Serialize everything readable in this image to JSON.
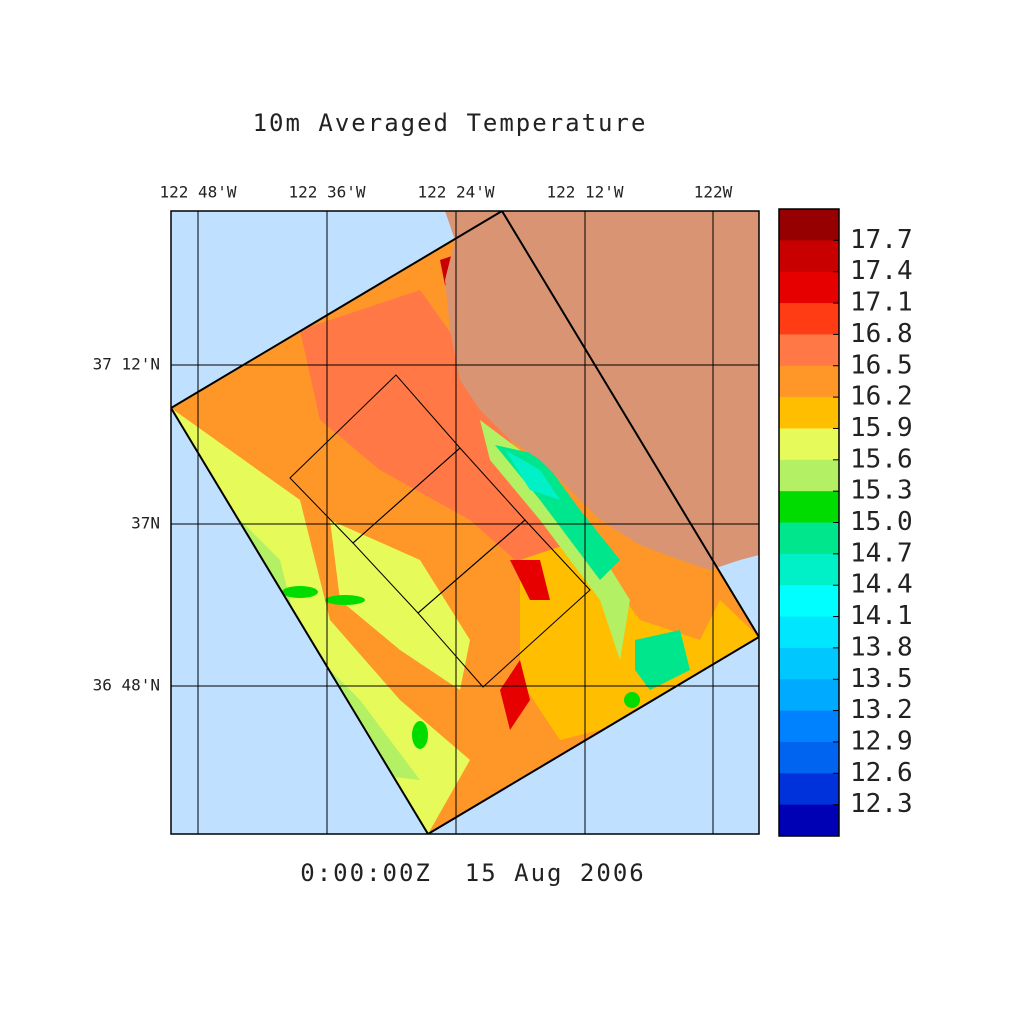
{
  "title": "10m Averaged Temperature",
  "timestamp": "0:00:00Z  15 Aug 2006",
  "lon_labels": [
    "122 48'W",
    "122 36'W",
    "122 24'W",
    "122 12'W",
    "122W"
  ],
  "lat_labels": [
    "37 12'N",
    "37N",
    "36 48'N"
  ],
  "colorbar": {
    "colors": [
      "#960000",
      "#c80000",
      "#e60000",
      "#ff3c14",
      "#ff7846",
      "#ff9628",
      "#ffbe00",
      "#e6fa5a",
      "#b4f064",
      "#00dc00",
      "#00e68c",
      "#00f0c8",
      "#00ffff",
      "#00e6ff",
      "#00c8ff",
      "#00aaff",
      "#0082ff",
      "#0064f0",
      "#0032dc",
      "#0000b4"
    ],
    "ticks": [
      17.7,
      17.4,
      17.1,
      16.8,
      16.5,
      16.2,
      15.9,
      15.6,
      15.3,
      {
        "value": 15,
        "label": "15.0"
      },
      14.7,
      14.4,
      14.1,
      13.8,
      13.5,
      13.2,
      12.9,
      12.6,
      12.3
    ]
  }
}
